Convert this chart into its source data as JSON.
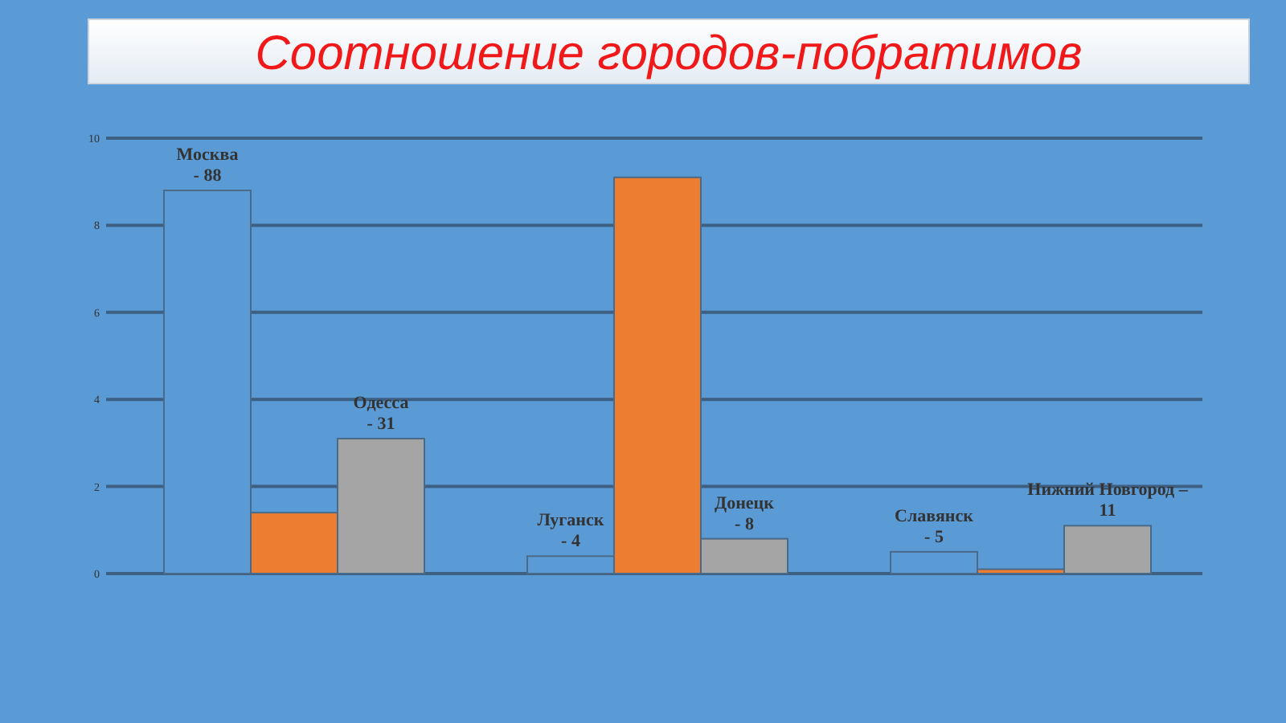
{
  "chart_data": {
    "type": "bar",
    "title": "Соотношение городов-побратимов",
    "categories": [
      null,
      null,
      null
    ],
    "series": [
      {
        "color": "#5b9bd5",
        "values": [
          8.8,
          0.4,
          0.5
        ]
      },
      {
        "color": "#ed7d31",
        "values": [
          1.4,
          9.1,
          0.1
        ]
      },
      {
        "color": "#a5a5a5",
        "values": [
          3.1,
          0.8,
          1.1
        ]
      }
    ],
    "annotations": [
      "Москва\n- 88",
      "Одесса\n- 31",
      "Луганск\n- 4",
      "Донецк\n- 8",
      "Славянск\n- 5",
      "Нижний Новгород –\n11"
    ],
    "ylim": [
      0,
      10
    ],
    "yticks": [
      0,
      2,
      4,
      6,
      8,
      10
    ],
    "grid": "y"
  }
}
